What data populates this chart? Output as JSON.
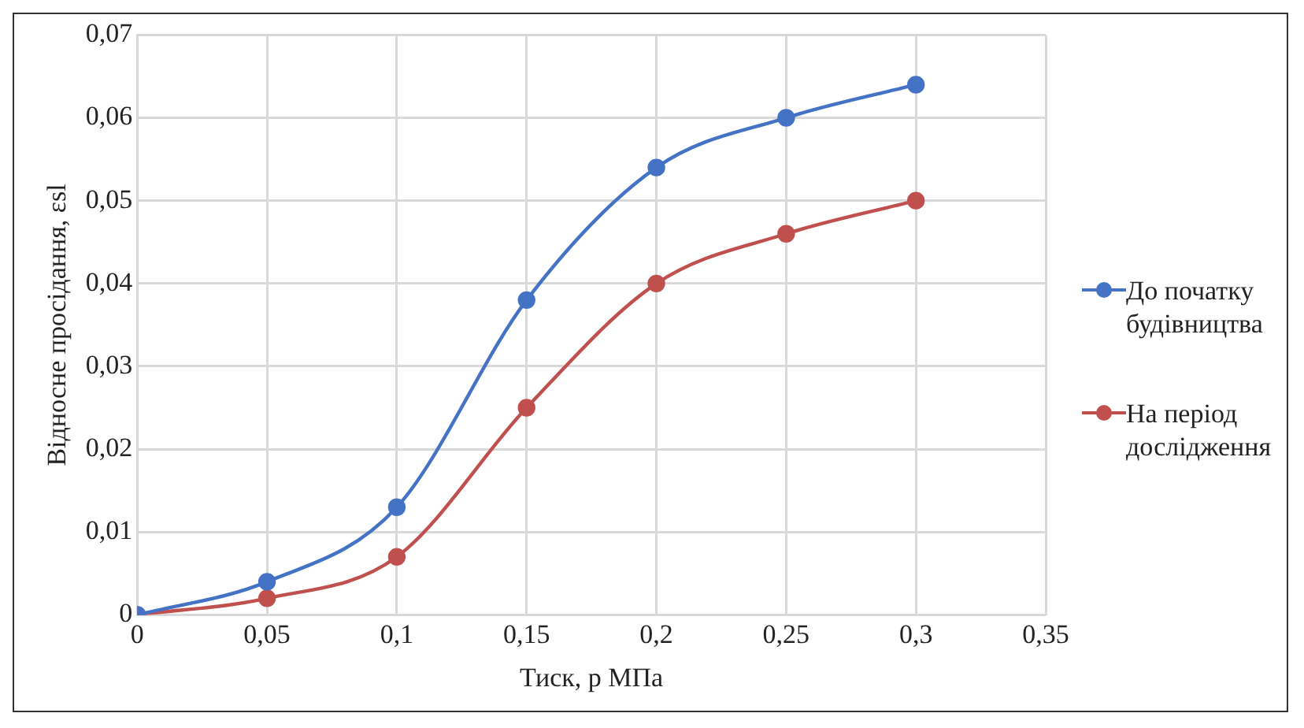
{
  "chart_data": {
    "type": "line",
    "xlabel": "Тиск, р МПа",
    "ylabel": "Відносне просідання, εsl",
    "x": [
      0,
      0.05,
      0.1,
      0.15,
      0.2,
      0.25,
      0.3
    ],
    "series": [
      {
        "name": "До початку будівництва",
        "color": "#4472c4",
        "values": [
          0,
          0.004,
          0.013,
          0.038,
          0.054,
          0.06,
          0.064
        ]
      },
      {
        "name": "На період дослідження",
        "color": "#c0504d",
        "values": [
          0,
          0.002,
          0.007,
          0.025,
          0.04,
          0.046,
          0.05
        ]
      }
    ],
    "xlim": [
      0,
      0.35
    ],
    "xticks": [
      0,
      {
        "value": 0.05,
        "label": "0,05"
      },
      {
        "value": 0.1,
        "label": "0,1"
      },
      {
        "value": 0.15,
        "label": "0,15"
      },
      {
        "value": 0.2,
        "label": "0,2"
      },
      {
        "value": 0.25,
        "label": "0,25"
      },
      {
        "value": 0.3,
        "label": "0,3"
      },
      {
        "value": 0.35,
        "label": "0,35"
      }
    ],
    "ylim": [
      0,
      0.07
    ],
    "yticks": [
      0,
      {
        "value": 0.01,
        "label": "0,01"
      },
      {
        "value": 0.02,
        "label": "0,02"
      },
      {
        "value": 0.03,
        "label": "0,03"
      },
      {
        "value": 0.04,
        "label": "0,04"
      },
      {
        "value": 0.05,
        "label": "0,05"
      },
      {
        "value": 0.06,
        "label": "0,06"
      },
      {
        "value": 0.07,
        "label": "0,07"
      }
    ],
    "grid": true,
    "legend": "right",
    "marker": "circle",
    "line_style": "solid"
  }
}
